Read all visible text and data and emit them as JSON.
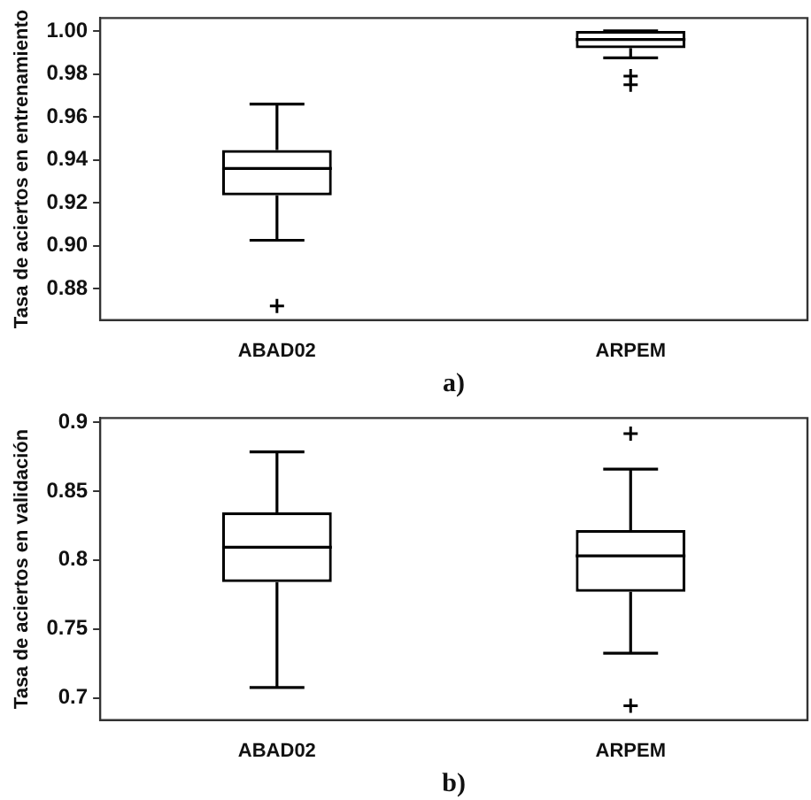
{
  "chart_data": [
    {
      "type": "box",
      "categories": [
        "ABAD02",
        "ARPEM"
      ],
      "ylabel": "Tasa de aciertos en entrenamiento",
      "xlabel": "a)",
      "ylim": [
        0.8655,
        1.006
      ],
      "yticks": [
        0.88,
        {
          "value": 0.9,
          "label": "0.90"
        },
        0.92,
        0.94,
        0.96,
        0.98,
        {
          "value": 1,
          "label": "1.00"
        }
      ],
      "grid": false,
      "color": "#000000",
      "boxes": [
        {
          "low": 0.9026,
          "q1": 0.9235,
          "median": 0.936,
          "q3": 0.9446,
          "high": 0.966,
          "outliers": [
            0.872
          ]
        },
        {
          "low": 0.9875,
          "q1": 0.992,
          "median": 0.996,
          "q3": 1.0,
          "high": 1.0,
          "outliers": [
            0.979,
            0.975
          ]
        }
      ]
    },
    {
      "type": "box",
      "categories": [
        "ABAD02",
        "ARPEM"
      ],
      "ylabel": "Tasa de aciertos en validación",
      "xlabel": "b)",
      "ylim": [
        0.684,
        0.903
      ],
      "yticks": [
        0.7,
        0.75,
        0.8,
        0.85,
        0.9
      ],
      "grid": false,
      "color": "#000000",
      "boxes": [
        {
          "low": 0.7076,
          "q1": 0.784,
          "median": 0.8093,
          "q3": 0.8346,
          "high": 0.8785
        },
        {
          "low": 0.7325,
          "q1": 0.777,
          "median": 0.803,
          "q3": 0.8217,
          "high": 0.866,
          "outliers": [
            0.8917,
            0.6943
          ]
        }
      ]
    }
  ]
}
